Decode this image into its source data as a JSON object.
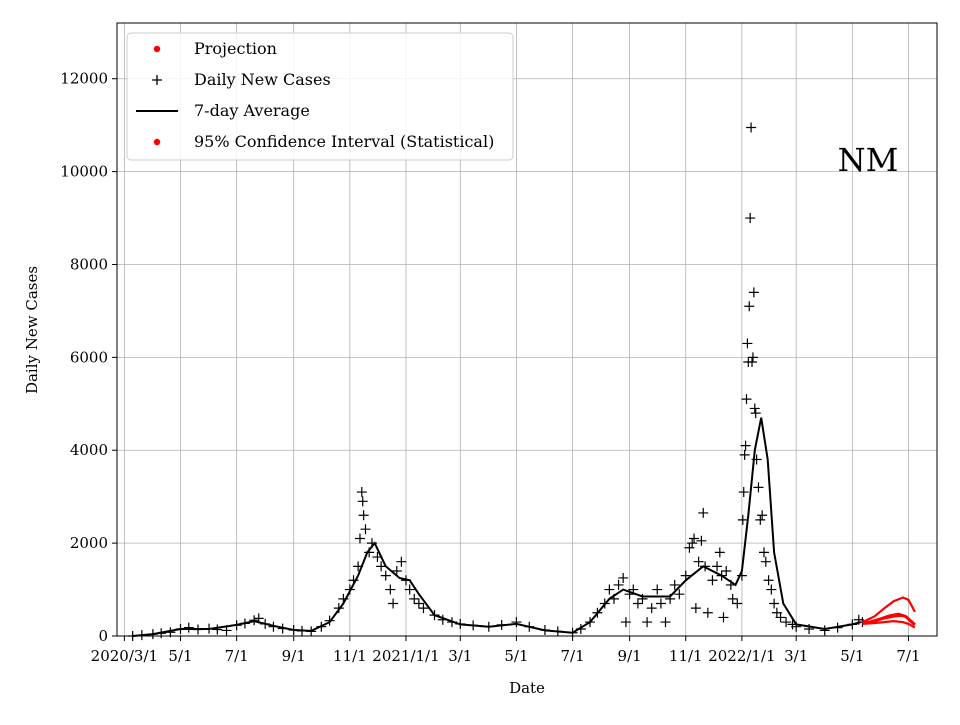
{
  "chart_data": {
    "type": "scatter",
    "state_label": "NM",
    "xlabel": "Date",
    "ylabel": "Daily New Cases",
    "x_range": [
      "2020-02-22",
      "2022-08-01"
    ],
    "ylim": [
      0,
      13200
    ],
    "grid": true,
    "legend_position": "top-left",
    "x_ticks": [
      {
        "date": "2020-03-01",
        "label": "2020/3/1"
      },
      {
        "date": "2020-05-01",
        "label": "5/1"
      },
      {
        "date": "2020-07-01",
        "label": "7/1"
      },
      {
        "date": "2020-09-01",
        "label": "9/1"
      },
      {
        "date": "2020-11-01",
        "label": "11/1"
      },
      {
        "date": "2021-01-01",
        "label": "2021/1/1"
      },
      {
        "date": "2021-03-01",
        "label": "3/1"
      },
      {
        "date": "2021-05-01",
        "label": "5/1"
      },
      {
        "date": "2021-07-01",
        "label": "7/1"
      },
      {
        "date": "2021-09-01",
        "label": "9/1"
      },
      {
        "date": "2021-11-01",
        "label": "11/1"
      },
      {
        "date": "2022-01-01",
        "label": "2022/1/1"
      },
      {
        "date": "2022-03-01",
        "label": "3/1"
      },
      {
        "date": "2022-05-01",
        "label": "5/1"
      },
      {
        "date": "2022-07-01",
        "label": "7/1"
      }
    ],
    "y_ticks": [
      0,
      2000,
      4000,
      6000,
      8000,
      10000,
      12000
    ],
    "legend": [
      {
        "label": "Projection",
        "marker": "dot",
        "color": "#ff0000"
      },
      {
        "label": "Daily New Cases",
        "marker": "plus",
        "color": "#000000"
      },
      {
        "label": "7-day Average",
        "marker": "line",
        "color": "#000000"
      },
      {
        "label": "95% Confidence Interval (Statistical)",
        "marker": "dot",
        "color": "#ff0000"
      }
    ],
    "series": [
      {
        "name": "7-day Average",
        "color": "#000000",
        "points": [
          [
            "2020-03-10",
            0
          ],
          [
            "2020-04-01",
            40
          ],
          [
            "2020-05-01",
            150
          ],
          [
            "2020-06-01",
            150
          ],
          [
            "2020-07-01",
            240
          ],
          [
            "2020-07-20",
            320
          ],
          [
            "2020-08-10",
            220
          ],
          [
            "2020-09-01",
            130
          ],
          [
            "2020-09-20",
            110
          ],
          [
            "2020-10-10",
            300
          ],
          [
            "2020-10-25",
            700
          ],
          [
            "2020-11-10",
            1300
          ],
          [
            "2020-11-20",
            1800
          ],
          [
            "2020-11-28",
            2000
          ],
          [
            "2020-12-10",
            1500
          ],
          [
            "2020-12-25",
            1250
          ],
          [
            "2021-01-05",
            1200
          ],
          [
            "2021-01-15",
            900
          ],
          [
            "2021-02-01",
            450
          ],
          [
            "2021-03-01",
            250
          ],
          [
            "2021-04-01",
            200
          ],
          [
            "2021-05-01",
            260
          ],
          [
            "2021-06-01",
            120
          ],
          [
            "2021-07-01",
            70
          ],
          [
            "2021-07-20",
            300
          ],
          [
            "2021-08-10",
            800
          ],
          [
            "2021-08-25",
            1000
          ],
          [
            "2021-09-15",
            850
          ],
          [
            "2021-10-15",
            850
          ],
          [
            "2021-11-01",
            1200
          ],
          [
            "2021-11-20",
            1500
          ],
          [
            "2021-12-10",
            1300
          ],
          [
            "2021-12-25",
            1100
          ],
          [
            "2022-01-01",
            1400
          ],
          [
            "2022-01-08",
            2600
          ],
          [
            "2022-01-15",
            4000
          ],
          [
            "2022-01-22",
            4700
          ],
          [
            "2022-01-29",
            3800
          ],
          [
            "2022-02-05",
            1800
          ],
          [
            "2022-02-15",
            700
          ],
          [
            "2022-03-01",
            250
          ],
          [
            "2022-04-01",
            150
          ],
          [
            "2022-05-01",
            250
          ],
          [
            "2022-05-10",
            300
          ]
        ]
      },
      {
        "name": "Daily New Cases",
        "color": "#000000",
        "points": [
          [
            "2020-03-10",
            0
          ],
          [
            "2020-03-20",
            20
          ],
          [
            "2020-04-01",
            40
          ],
          [
            "2020-04-10",
            60
          ],
          [
            "2020-04-20",
            80
          ],
          [
            "2020-05-01",
            150
          ],
          [
            "2020-05-10",
            180
          ],
          [
            "2020-05-20",
            140
          ],
          [
            "2020-06-01",
            160
          ],
          [
            "2020-06-10",
            140
          ],
          [
            "2020-06-20",
            120
          ],
          [
            "2020-07-01",
            230
          ],
          [
            "2020-07-10",
            270
          ],
          [
            "2020-07-20",
            340
          ],
          [
            "2020-07-25",
            380
          ],
          [
            "2020-08-01",
            260
          ],
          [
            "2020-08-10",
            200
          ],
          [
            "2020-08-20",
            160
          ],
          [
            "2020-09-01",
            130
          ],
          [
            "2020-09-10",
            110
          ],
          [
            "2020-09-20",
            100
          ],
          [
            "2020-10-01",
            200
          ],
          [
            "2020-10-10",
            330
          ],
          [
            "2020-10-20",
            600
          ],
          [
            "2020-10-25",
            800
          ],
          [
            "2020-11-01",
            1000
          ],
          [
            "2020-11-05",
            1200
          ],
          [
            "2020-11-10",
            1500
          ],
          [
            "2020-11-12",
            2100
          ],
          [
            "2020-11-14",
            3100
          ],
          [
            "2020-11-15",
            2900
          ],
          [
            "2020-11-16",
            2600
          ],
          [
            "2020-11-18",
            2300
          ],
          [
            "2020-11-22",
            1800
          ],
          [
            "2020-11-25",
            2000
          ],
          [
            "2020-12-01",
            1700
          ],
          [
            "2020-12-05",
            1500
          ],
          [
            "2020-12-10",
            1300
          ],
          [
            "2020-12-15",
            1000
          ],
          [
            "2020-12-18",
            700
          ],
          [
            "2020-12-22",
            1400
          ],
          [
            "2020-12-27",
            1600
          ],
          [
            "2021-01-01",
            1200
          ],
          [
            "2021-01-05",
            1000
          ],
          [
            "2021-01-10",
            800
          ],
          [
            "2021-01-15",
            700
          ],
          [
            "2021-01-20",
            600
          ],
          [
            "2021-02-01",
            450
          ],
          [
            "2021-02-10",
            350
          ],
          [
            "2021-02-20",
            300
          ],
          [
            "2021-03-01",
            260
          ],
          [
            "2021-03-15",
            230
          ],
          [
            "2021-04-01",
            200
          ],
          [
            "2021-04-15",
            240
          ],
          [
            "2021-05-01",
            300
          ],
          [
            "2021-05-15",
            200
          ],
          [
            "2021-06-01",
            130
          ],
          [
            "2021-06-15",
            100
          ],
          [
            "2021-07-01",
            70
          ],
          [
            "2021-07-10",
            150
          ],
          [
            "2021-07-20",
            300
          ],
          [
            "2021-07-28",
            500
          ],
          [
            "2021-08-05",
            700
          ],
          [
            "2021-08-10",
            1000
          ],
          [
            "2021-08-15",
            800
          ],
          [
            "2021-08-20",
            1100
          ],
          [
            "2021-08-25",
            1250
          ],
          [
            "2021-08-28",
            300
          ],
          [
            "2021-09-01",
            900
          ],
          [
            "2021-09-05",
            1000
          ],
          [
            "2021-09-10",
            700
          ],
          [
            "2021-09-15",
            800
          ],
          [
            "2021-09-20",
            300
          ],
          [
            "2021-09-25",
            600
          ],
          [
            "2021-10-01",
            1000
          ],
          [
            "2021-10-05",
            700
          ],
          [
            "2021-10-10",
            300
          ],
          [
            "2021-10-15",
            800
          ],
          [
            "2021-10-20",
            1100
          ],
          [
            "2021-10-25",
            900
          ],
          [
            "2021-11-01",
            1300
          ],
          [
            "2021-11-05",
            1900
          ],
          [
            "2021-11-08",
            2000
          ],
          [
            "2021-11-10",
            2100
          ],
          [
            "2021-11-12",
            600
          ],
          [
            "2021-11-15",
            1600
          ],
          [
            "2021-11-18",
            2050
          ],
          [
            "2021-11-20",
            2650
          ],
          [
            "2021-11-22",
            1500
          ],
          [
            "2021-11-25",
            500
          ],
          [
            "2021-11-30",
            1200
          ],
          [
            "2021-12-05",
            1500
          ],
          [
            "2021-12-08",
            1800
          ],
          [
            "2021-12-10",
            1300
          ],
          [
            "2021-12-12",
            400
          ],
          [
            "2021-12-15",
            1400
          ],
          [
            "2021-12-20",
            1100
          ],
          [
            "2021-12-22",
            800
          ],
          [
            "2021-12-27",
            700
          ],
          [
            "2022-01-01",
            1300
          ],
          [
            "2022-01-02",
            2500
          ],
          [
            "2022-01-03",
            3100
          ],
          [
            "2022-01-04",
            3900
          ],
          [
            "2022-01-05",
            4100
          ],
          [
            "2022-01-06",
            5100
          ],
          [
            "2022-01-07",
            6300
          ],
          [
            "2022-01-08",
            5900
          ],
          [
            "2022-01-09",
            7100
          ],
          [
            "2022-01-10",
            9000
          ],
          [
            "2022-01-11",
            10950
          ],
          [
            "2022-01-12",
            5900
          ],
          [
            "2022-01-13",
            6000
          ],
          [
            "2022-01-14",
            7400
          ],
          [
            "2022-01-15",
            4900
          ],
          [
            "2022-01-16",
            4800
          ],
          [
            "2022-01-17",
            3800
          ],
          [
            "2022-01-19",
            3200
          ],
          [
            "2022-01-21",
            2500
          ],
          [
            "2022-01-23",
            2600
          ],
          [
            "2022-01-25",
            1800
          ],
          [
            "2022-01-27",
            1600
          ],
          [
            "2022-01-30",
            1200
          ],
          [
            "2022-02-02",
            1000
          ],
          [
            "2022-02-05",
            700
          ],
          [
            "2022-02-08",
            500
          ],
          [
            "2022-02-12",
            400
          ],
          [
            "2022-02-18",
            300
          ],
          [
            "2022-02-25",
            250
          ],
          [
            "2022-03-01",
            200
          ],
          [
            "2022-03-15",
            150
          ],
          [
            "2022-04-01",
            120
          ],
          [
            "2022-04-15",
            180
          ],
          [
            "2022-05-01",
            250
          ],
          [
            "2022-05-08",
            350
          ],
          [
            "2022-05-12",
            300
          ]
        ]
      },
      {
        "name": "Projection",
        "color": "#ff0000",
        "points": [
          [
            "2022-05-12",
            280
          ],
          [
            "2022-05-20",
            300
          ],
          [
            "2022-06-01",
            370
          ],
          [
            "2022-06-10",
            430
          ],
          [
            "2022-06-20",
            470
          ],
          [
            "2022-06-28",
            420
          ],
          [
            "2022-07-08",
            240
          ]
        ]
      },
      {
        "name": "95% Confidence Interval (Statistical)",
        "color": "#ff0000",
        "bands": [
          [
            [
              "2022-05-12",
              300
            ],
            [
              "2022-05-25",
              420
            ],
            [
              "2022-06-05",
              600
            ],
            [
              "2022-06-15",
              750
            ],
            [
              "2022-06-25",
              830
            ],
            [
              "2022-07-01",
              780
            ],
            [
              "2022-07-08",
              520
            ]
          ],
          [
            [
              "2022-05-12",
              270
            ],
            [
              "2022-05-25",
              320
            ],
            [
              "2022-06-05",
              380
            ],
            [
              "2022-06-15",
              420
            ],
            [
              "2022-06-25",
              440
            ],
            [
              "2022-07-01",
              380
            ],
            [
              "2022-07-08",
              250
            ]
          ],
          [
            [
              "2022-05-12",
              260
            ],
            [
              "2022-05-25",
              280
            ],
            [
              "2022-06-05",
              300
            ],
            [
              "2022-06-15",
              320
            ],
            [
              "2022-06-25",
              300
            ],
            [
              "2022-07-01",
              260
            ],
            [
              "2022-07-08",
              180
            ]
          ]
        ]
      }
    ]
  }
}
